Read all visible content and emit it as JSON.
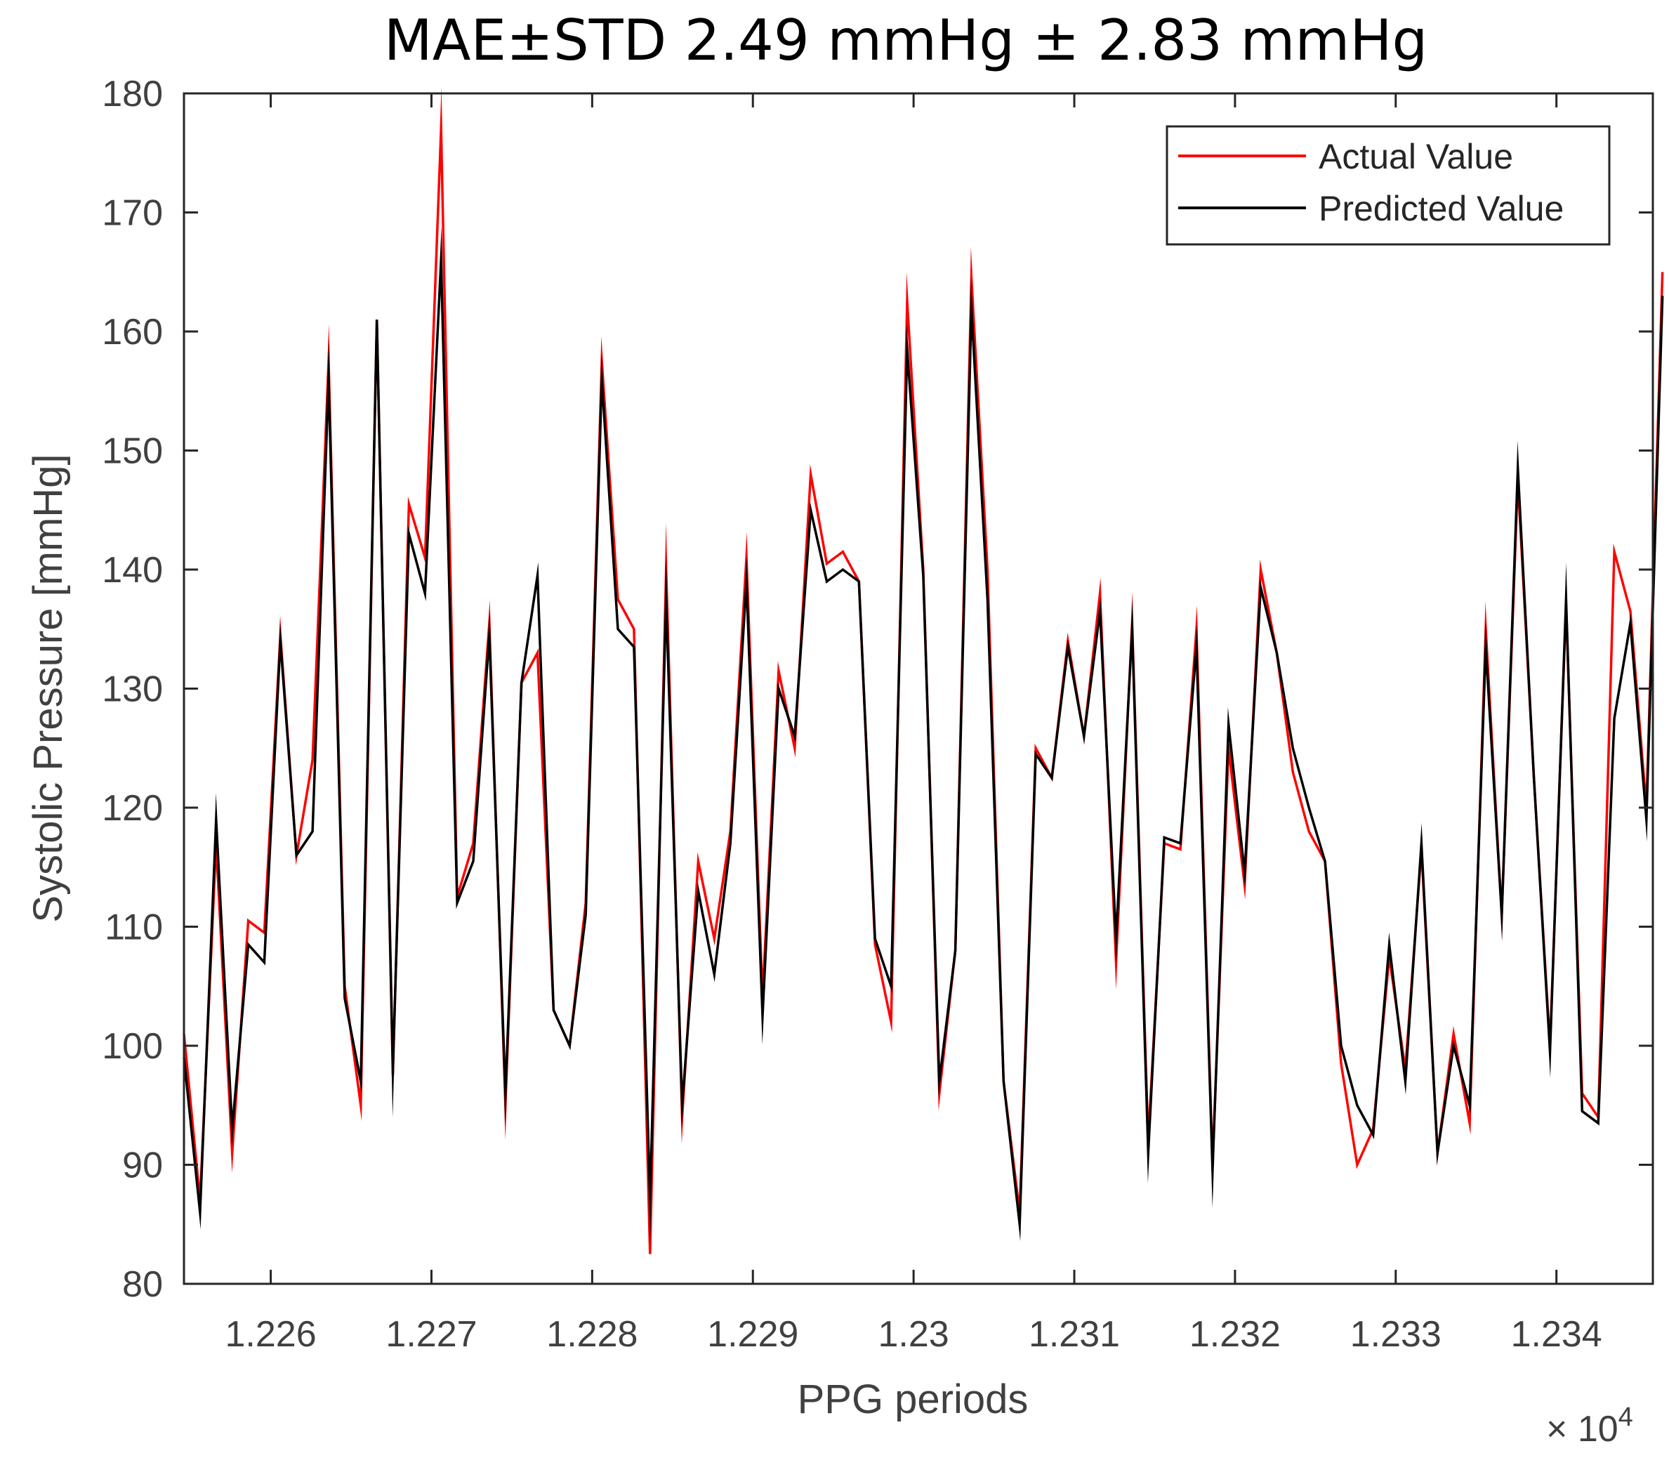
{
  "chart_data": {
    "type": "line",
    "title": "MAE±STD 2.49 mmHg ± 2.83 mmHg",
    "xlabel": "PPG periods",
    "ylabel": "Systolic Pressure [mmHg]",
    "x_exponent_label": "× 10",
    "x_exponent_power": "4",
    "xlim": [
      12254.6,
      12346.0
    ],
    "ylim": [
      80,
      180
    ],
    "x_ticks": [
      12260,
      12270,
      12280,
      12290,
      12300,
      12310,
      12320,
      12330,
      12340
    ],
    "x_tick_labels": [
      "1.226",
      "1.227",
      "1.228",
      "1.229",
      "1.23",
      "1.231",
      "1.232",
      "1.233",
      "1.234"
    ],
    "y_ticks": [
      80,
      90,
      100,
      110,
      120,
      130,
      140,
      150,
      160,
      170,
      180
    ],
    "y_tick_labels": [
      "80",
      "90",
      "100",
      "110",
      "120",
      "130",
      "140",
      "150",
      "160",
      "170",
      "180"
    ],
    "grid": false,
    "legend_position": "top-right",
    "x_start": 12254.6,
    "x_step": 1,
    "series": [
      {
        "name": "Actual Value",
        "color": "#ff0000",
        "values": [
          101,
          87,
          117,
          91,
          110.5,
          109.5,
          134.5,
          116,
          124,
          157.5,
          105,
          95,
          161,
          97.5,
          145.5,
          141,
          177,
          112.5,
          117,
          135.5,
          95,
          130.5,
          133,
          103,
          100,
          112,
          157.5,
          137.5,
          135,
          82.5,
          140,
          94,
          115.5,
          109,
          118,
          141,
          104,
          131.5,
          125,
          148,
          140.5,
          141.5,
          139,
          108.5,
          102,
          162.5,
          140,
          96,
          108,
          164.5,
          140,
          97,
          86,
          125,
          122.5,
          134,
          126,
          138,
          107,
          135.5,
          92,
          117,
          116.5,
          135,
          90,
          125,
          113.5,
          140,
          133,
          123,
          118,
          115.5,
          98.5,
          90,
          93,
          107.5,
          98,
          116.5,
          91,
          101,
          93.5,
          135,
          111,
          147.5,
          122.5,
          100,
          137,
          96,
          94,
          141.5,
          136.5,
          120,
          165
        ]
      },
      {
        "name": "Predicted Value",
        "color": "#000000",
        "values": [
          99,
          86,
          119,
          93,
          108.5,
          107,
          134,
          116,
          118,
          156,
          104,
          97,
          161,
          98,
          143,
          138,
          166,
          112,
          115.5,
          134.5,
          96,
          130.5,
          139.5,
          103,
          100,
          111,
          156,
          135,
          133.5,
          87,
          137.5,
          95,
          113,
          106,
          117,
          139,
          102.5,
          130,
          126,
          145,
          139,
          140,
          139,
          109,
          105,
          158.5,
          139.5,
          97,
          108,
          162,
          137.5,
          97,
          85,
          124.5,
          122.5,
          133.5,
          126,
          136.5,
          109,
          135,
          91,
          117.5,
          117,
          133.5,
          89.5,
          127,
          114.5,
          138.5,
          133,
          125,
          120,
          115.5,
          100,
          95,
          92.5,
          108.5,
          97,
          117,
          91,
          100,
          95,
          133.5,
          111,
          148.5,
          122.5,
          99.5,
          137.5,
          94.5,
          93.5,
          127.5,
          135.5,
          119,
          163
        ]
      }
    ]
  }
}
